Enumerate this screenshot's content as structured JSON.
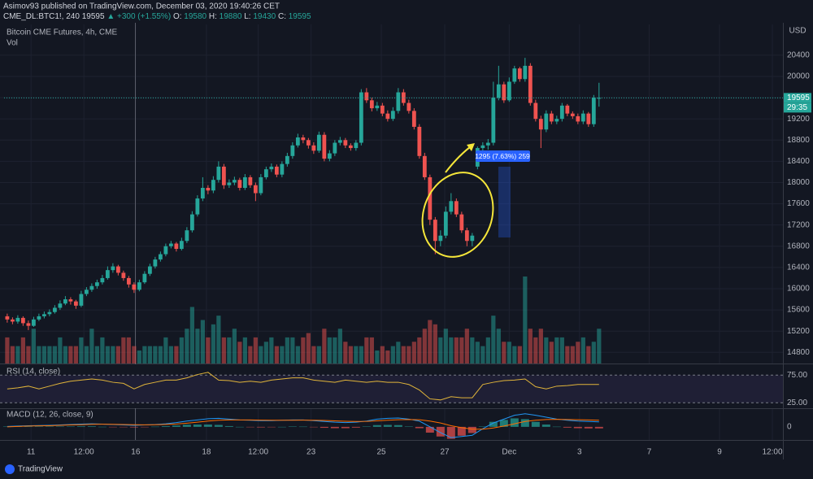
{
  "header": {
    "author": "Asimov93 published on TradingView.com, December 03, 2020 19:40:26 CET",
    "symbol": "CME_DL:BTC1!, 240",
    "last": "19595",
    "change": "▲ +300 (+1.55%)",
    "o_label": "O:",
    "o": "19580",
    "h_label": "H:",
    "h": "19880",
    "l_label": "L:",
    "l": "19430",
    "c_label": "C:",
    "c": "19595"
  },
  "footer": {
    "brand": "TradingView"
  },
  "chart_data": {
    "type": "candlestick",
    "title": "Bitcoin CME Futures, 4h, CME",
    "volume_title": "Vol",
    "currency": "USD",
    "countdown": "29:35",
    "measure_label": "1295 (7.63%) 259",
    "up_color": "#26a69a",
    "down_color": "#ef5350",
    "grid": true,
    "ylim": [
      14590,
      20980
    ],
    "yticks": [
      14800,
      15200,
      15600,
      16000,
      16400,
      16800,
      17200,
      17600,
      18000,
      18400,
      18800,
      19200,
      19600,
      20000,
      20400
    ],
    "xlim": [
      -0.6,
      146.8
    ],
    "xticks": [
      {
        "value": 4.5,
        "label": "11"
      },
      {
        "value": 14.5,
        "label": "12:00"
      },
      {
        "value": 24.3,
        "label": "16"
      },
      {
        "value": 37.7,
        "label": "18"
      },
      {
        "value": 47.5,
        "label": "12:00"
      },
      {
        "value": 57.5,
        "label": "23"
      },
      {
        "value": 70.8,
        "label": "25"
      },
      {
        "value": 82.8,
        "label": "27"
      },
      {
        "value": 95,
        "label": "Dec"
      },
      {
        "value": 108.3,
        "label": "3"
      },
      {
        "value": 121.5,
        "label": "7"
      },
      {
        "value": 134.8,
        "label": "9"
      },
      {
        "value": 144.8,
        "label": "12:00"
      }
    ],
    "ohlc": [
      [
        15480,
        15530,
        15360,
        15420
      ],
      [
        15420,
        15460,
        15330,
        15380
      ],
      [
        15380,
        15500,
        15340,
        15450
      ],
      [
        15450,
        15480,
        15300,
        15350
      ],
      [
        15350,
        15400,
        15220,
        15300
      ],
      [
        15300,
        15470,
        15280,
        15420
      ],
      [
        15420,
        15530,
        15390,
        15480
      ],
      [
        15480,
        15570,
        15440,
        15520
      ],
      [
        15520,
        15610,
        15480,
        15560
      ],
      [
        15560,
        15690,
        15530,
        15640
      ],
      [
        15640,
        15780,
        15600,
        15720
      ],
      [
        15720,
        15860,
        15690,
        15800
      ],
      [
        15800,
        15840,
        15700,
        15760
      ],
      [
        15760,
        15790,
        15620,
        15680
      ],
      [
        15680,
        15960,
        15650,
        15900
      ],
      [
        15900,
        16030,
        15860,
        15980
      ],
      [
        15980,
        16100,
        15940,
        16050
      ],
      [
        16050,
        16170,
        16000,
        16120
      ],
      [
        16120,
        16260,
        16080,
        16200
      ],
      [
        16200,
        16420,
        16170,
        16350
      ],
      [
        16350,
        16480,
        16300,
        16420
      ],
      [
        16420,
        16450,
        16250,
        16300
      ],
      [
        16300,
        16340,
        16150,
        16200
      ],
      [
        16200,
        16240,
        16020,
        16080
      ],
      [
        16080,
        16120,
        15920,
        15980
      ],
      [
        15980,
        16170,
        15950,
        16120
      ],
      [
        16120,
        16330,
        16090,
        16280
      ],
      [
        16280,
        16470,
        16240,
        16420
      ],
      [
        16420,
        16600,
        16380,
        16550
      ],
      [
        16550,
        16700,
        16510,
        16650
      ],
      [
        16650,
        16850,
        16610,
        16800
      ],
      [
        16800,
        16900,
        16760,
        16850
      ],
      [
        16850,
        16880,
        16700,
        16750
      ],
      [
        16750,
        16960,
        16720,
        16900
      ],
      [
        16900,
        17160,
        16860,
        17100
      ],
      [
        17100,
        17460,
        17060,
        17400
      ],
      [
        17400,
        17760,
        17360,
        17700
      ],
      [
        17700,
        18100,
        17650,
        17900
      ],
      [
        17900,
        17950,
        17780,
        17850
      ],
      [
        17850,
        18120,
        17800,
        18050
      ],
      [
        18050,
        18400,
        18000,
        18300
      ],
      [
        18300,
        18350,
        17880,
        17950
      ],
      [
        17950,
        18060,
        17900,
        18000
      ],
      [
        18000,
        18110,
        17950,
        18050
      ],
      [
        18050,
        18090,
        17850,
        17900
      ],
      [
        17900,
        18160,
        17860,
        18100
      ],
      [
        18100,
        18140,
        17900,
        17950
      ],
      [
        17950,
        18000,
        17650,
        17800
      ],
      [
        17800,
        18160,
        17760,
        18100
      ],
      [
        18100,
        18300,
        18060,
        18250
      ],
      [
        18250,
        18360,
        18200,
        18300
      ],
      [
        18300,
        18340,
        18100,
        18150
      ],
      [
        18150,
        18400,
        18100,
        18350
      ],
      [
        18350,
        18560,
        18300,
        18500
      ],
      [
        18500,
        18760,
        18450,
        18700
      ],
      [
        18700,
        18920,
        18660,
        18850
      ],
      [
        18850,
        18900,
        18740,
        18800
      ],
      [
        18800,
        18840,
        18640,
        18700
      ],
      [
        18700,
        18760,
        18540,
        18600
      ],
      [
        18600,
        18960,
        18560,
        18900
      ],
      [
        18900,
        18950,
        18400,
        18450
      ],
      [
        18450,
        18610,
        18400,
        18550
      ],
      [
        18550,
        18800,
        18500,
        18750
      ],
      [
        18750,
        18860,
        18700,
        18800
      ],
      [
        18800,
        18840,
        18650,
        18700
      ],
      [
        18700,
        18740,
        18600,
        18650
      ],
      [
        18650,
        18800,
        18600,
        18750
      ],
      [
        18750,
        19760,
        18700,
        19700
      ],
      [
        19700,
        19780,
        19500,
        19550
      ],
      [
        19550,
        19600,
        19340,
        19400
      ],
      [
        19400,
        19520,
        19350,
        19450
      ],
      [
        19450,
        19500,
        19250,
        19300
      ],
      [
        19300,
        19360,
        19150,
        19200
      ],
      [
        19200,
        19420,
        19160,
        19350
      ],
      [
        19350,
        19780,
        19300,
        19700
      ],
      [
        19700,
        19760,
        19450,
        19500
      ],
      [
        19500,
        19560,
        19300,
        19350
      ],
      [
        19350,
        19400,
        19000,
        19050
      ],
      [
        19050,
        19100,
        18450,
        18500
      ],
      [
        18500,
        18560,
        18050,
        18100
      ],
      [
        18100,
        18150,
        17200,
        17300
      ],
      [
        17300,
        17350,
        16650,
        16900
      ],
      [
        16900,
        17100,
        16800,
        17000
      ],
      [
        17000,
        17550,
        16950,
        17450
      ],
      [
        17450,
        17800,
        17400,
        17650
      ],
      [
        17650,
        17700,
        17350,
        17400
      ],
      [
        17400,
        17450,
        17050,
        17100
      ],
      [
        17100,
        17150,
        16800,
        16900
      ],
      [
        16900,
        17050,
        16800,
        17000
      ],
      [
        18300,
        18680,
        18250,
        18650
      ],
      [
        18650,
        18760,
        18560,
        18700
      ],
      [
        18700,
        18820,
        18620,
        18750
      ],
      [
        18750,
        19900,
        18700,
        19600
      ],
      [
        19600,
        20200,
        19550,
        19850
      ],
      [
        19850,
        19900,
        19500,
        19550
      ],
      [
        19550,
        19980,
        19520,
        19900
      ],
      [
        19900,
        20200,
        19860,
        20150
      ],
      [
        20150,
        20180,
        19900,
        19950
      ],
      [
        19950,
        20350,
        19900,
        20200
      ],
      [
        20200,
        20250,
        19450,
        19500
      ],
      [
        19500,
        19560,
        19150,
        19200
      ],
      [
        19200,
        19260,
        18650,
        19000
      ],
      [
        19000,
        19360,
        18950,
        19300
      ],
      [
        19300,
        19350,
        19100,
        19150
      ],
      [
        19150,
        19260,
        19100,
        19200
      ],
      [
        19200,
        19500,
        19150,
        19450
      ],
      [
        19450,
        19480,
        19250,
        19300
      ],
      [
        19300,
        19340,
        19200,
        19250
      ],
      [
        19250,
        19300,
        19100,
        19150
      ],
      [
        19150,
        19360,
        19100,
        19300
      ],
      [
        19300,
        19330,
        19050,
        19100
      ],
      [
        19100,
        19650,
        19050,
        19600
      ],
      [
        19580,
        19880,
        19430,
        19595
      ]
    ],
    "volume": [
      3,
      2,
      2,
      3,
      2,
      4,
      2,
      2,
      2,
      2,
      3,
      2,
      2,
      2,
      3,
      2,
      4,
      2,
      3,
      2,
      2,
      2,
      3,
      3,
      2,
      1.5,
      2,
      2,
      2,
      2,
      3,
      2,
      2,
      3,
      4,
      6.5,
      4,
      5,
      3,
      4.5,
      5.5,
      3,
      3,
      4,
      2.5,
      3,
      2,
      3,
      2,
      2.5,
      3,
      2,
      2,
      3,
      3,
      2,
      3,
      3.5,
      2,
      2,
      4,
      3,
      3,
      4,
      2.5,
      2,
      2,
      2,
      3,
      3,
      1.5,
      2,
      1.5,
      2,
      2.5,
      2,
      2,
      2.5,
      3,
      4,
      5,
      4.5,
      3,
      4,
      3,
      3,
      3,
      4,
      3,
      2.5,
      2,
      3,
      5.5,
      4,
      2.5,
      2.5,
      2,
      2,
      10,
      4,
      3,
      4,
      3,
      2.5,
      3,
      3,
      2,
      2,
      2.5,
      3,
      2,
      2.5,
      4
    ],
    "indicator_x": [
      0,
      2,
      4,
      6,
      8,
      10,
      12,
      14,
      16,
      18,
      20,
      22,
      24,
      26,
      28,
      30,
      32,
      34,
      36,
      38,
      40,
      42,
      44,
      46,
      48,
      50,
      52,
      54,
      56,
      58,
      60,
      62,
      64,
      66,
      68,
      70,
      72,
      74,
      76,
      78,
      80,
      82,
      84,
      86,
      88,
      90,
      92,
      94,
      96,
      98,
      100,
      102,
      104,
      106,
      108,
      110,
      112
    ],
    "rsi": {
      "title": "RSI (14, close)",
      "color": "#e0b43a",
      "ylim": [
        15,
        93
      ],
      "yticks": [
        {
          "value": 75,
          "label": "75.00"
        },
        {
          "value": 25,
          "label": "25.00"
        }
      ],
      "values": [
        50,
        52,
        55,
        50,
        55,
        60,
        64,
        66,
        68,
        66,
        62,
        60,
        50,
        58,
        62,
        66,
        66,
        70,
        76,
        80,
        66,
        65,
        62,
        64,
        62,
        66,
        68,
        70,
        70,
        66,
        64,
        62,
        66,
        64,
        62,
        64,
        62,
        62,
        58,
        48,
        32,
        30,
        36,
        34,
        34,
        58,
        62,
        65,
        66,
        68,
        54,
        50,
        55,
        56,
        58,
        58,
        58
      ]
    },
    "macd": {
      "title": "MACD (12, 26, close, 9)",
      "macd_color": "#2196f3",
      "signal_color": "#ff6d00",
      "ylim": [
        -340,
        440
      ],
      "yticks": [
        0
      ],
      "macd": [
        10,
        20,
        30,
        35,
        40,
        50,
        60,
        70,
        80,
        70,
        60,
        50,
        40,
        50,
        60,
        80,
        110,
        150,
        180,
        210,
        220,
        200,
        180,
        170,
        160,
        160,
        170,
        180,
        180,
        160,
        140,
        120,
        110,
        120,
        150,
        200,
        220,
        230,
        200,
        150,
        0,
        -150,
        -280,
        -250,
        -220,
        -50,
        100,
        200,
        300,
        340,
        300,
        250,
        200,
        170,
        150,
        140,
        130
      ],
      "signal": [
        0,
        10,
        20,
        25,
        30,
        40,
        50,
        55,
        65,
        68,
        66,
        60,
        55,
        52,
        55,
        62,
        75,
        95,
        120,
        150,
        170,
        180,
        180,
        178,
        175,
        170,
        170,
        172,
        174,
        170,
        165,
        155,
        145,
        140,
        142,
        155,
        170,
        185,
        190,
        185,
        150,
        100,
        30,
        -20,
        -60,
        -60,
        -30,
        20,
        80,
        140,
        170,
        190,
        195,
        190,
        185,
        180,
        170
      ],
      "hist": [
        10,
        10,
        10,
        10,
        10,
        10,
        10,
        15,
        15,
        2,
        -6,
        -10,
        -15,
        -2,
        5,
        18,
        35,
        55,
        60,
        60,
        50,
        20,
        0,
        -8,
        -15,
        -10,
        0,
        8,
        6,
        -10,
        -25,
        -35,
        -35,
        -20,
        8,
        45,
        50,
        45,
        10,
        -35,
        -150,
        -250,
        -310,
        -230,
        -160,
        10,
        130,
        180,
        220,
        200,
        130,
        60,
        5,
        -20,
        -35,
        -40,
        -40
      ]
    }
  }
}
